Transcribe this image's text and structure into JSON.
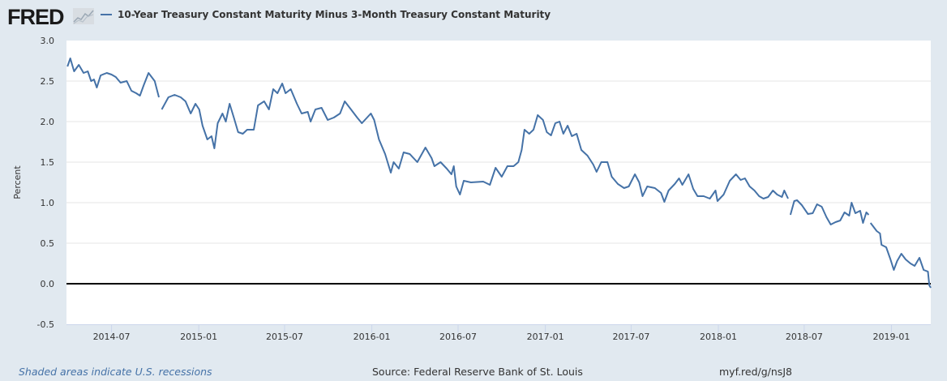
{
  "header": {
    "logo": "FRED",
    "legend_label": "10-Year Treasury Constant Maturity Minus 3-Month Treasury Constant Maturity"
  },
  "footer": {
    "recessions_note": "Shaded areas indicate U.S. recessions",
    "source": "Source: Federal Reserve Bank of St. Louis",
    "short_url": "myf.red/g/nsJ8"
  },
  "chart_data": {
    "type": "line",
    "title": "",
    "xlabel": "",
    "ylabel": "Percent",
    "xlim": [
      "2014-03-28",
      "2019-03-25"
    ],
    "ylim": [
      -0.5,
      3.0
    ],
    "yticks": [
      "-0.5",
      "0.0",
      "0.5",
      "1.0",
      "1.5",
      "2.0",
      "2.5",
      "3.0"
    ],
    "xticks": [
      "2014-07",
      "2015-01",
      "2015-07",
      "2016-01",
      "2016-07",
      "2017-01",
      "2017-07",
      "2018-01",
      "2018-07",
      "2019-01"
    ],
    "grid": true,
    "reference_line": 0,
    "legend_position": "top-left",
    "colors": {
      "series": "#4572a7",
      "zero_line": "#000000",
      "grid": "#e6e6e6",
      "background": "#e1e9f0"
    },
    "series": [
      {
        "name": "10-Year Treasury Constant Maturity Minus 3-Month Treasury Constant Maturity",
        "points": [
          [
            "2014-03-30",
            2.68
          ],
          [
            "2014-04-05",
            2.78
          ],
          [
            "2014-04-13",
            2.62
          ],
          [
            "2014-04-23",
            2.7
          ],
          [
            "2014-05-03",
            2.6
          ],
          [
            "2014-05-12",
            2.62
          ],
          [
            "2014-05-19",
            2.5
          ],
          [
            "2014-05-25",
            2.52
          ],
          [
            "2014-05-31",
            2.42
          ],
          [
            "2014-06-08",
            2.57
          ],
          [
            "2014-06-21",
            2.6
          ],
          [
            "2014-07-01",
            2.58
          ],
          [
            "2014-07-10",
            2.55
          ],
          [
            "2014-07-20",
            2.48
          ],
          [
            "2014-08-02",
            2.5
          ],
          [
            "2014-08-12",
            2.38
          ],
          [
            "2014-08-22",
            2.35
          ],
          [
            "2014-08-30",
            2.32
          ],
          [
            "2014-09-07",
            2.45
          ],
          [
            "2014-09-17",
            2.6
          ],
          [
            "2014-09-30",
            2.5
          ],
          [
            "2014-10-09",
            2.3
          ],
          [
            "2014-10-12",
            null
          ],
          [
            "2014-10-15",
            2.15
          ],
          [
            "2014-10-29",
            2.3
          ],
          [
            "2014-11-11",
            2.33
          ],
          [
            "2014-11-24",
            2.3
          ],
          [
            "2014-12-04",
            2.25
          ],
          [
            "2014-12-15",
            2.1
          ],
          [
            "2014-12-25",
            2.22
          ],
          [
            "2015-01-02",
            2.15
          ],
          [
            "2015-01-09",
            1.95
          ],
          [
            "2015-01-19",
            1.78
          ],
          [
            "2015-01-28",
            1.82
          ],
          [
            "2015-02-03",
            1.67
          ],
          [
            "2015-02-10",
            1.98
          ],
          [
            "2015-02-20",
            2.1
          ],
          [
            "2015-02-27",
            2.0
          ],
          [
            "2015-03-07",
            2.22
          ],
          [
            "2015-03-16",
            2.05
          ],
          [
            "2015-03-25",
            1.87
          ],
          [
            "2015-04-04",
            1.85
          ],
          [
            "2015-04-13",
            1.9
          ],
          [
            "2015-04-27",
            1.9
          ],
          [
            "2015-05-06",
            2.2
          ],
          [
            "2015-05-19",
            2.25
          ],
          [
            "2015-05-29",
            2.15
          ],
          [
            "2015-06-07",
            2.4
          ],
          [
            "2015-06-16",
            2.35
          ],
          [
            "2015-06-26",
            2.47
          ],
          [
            "2015-07-03",
            2.35
          ],
          [
            "2015-07-14",
            2.4
          ],
          [
            "2015-07-27",
            2.22
          ],
          [
            "2015-08-06",
            2.1
          ],
          [
            "2015-08-19",
            2.12
          ],
          [
            "2015-08-25",
            2.0
          ],
          [
            "2015-09-04",
            2.15
          ],
          [
            "2015-09-17",
            2.17
          ],
          [
            "2015-09-30",
            2.02
          ],
          [
            "2015-10-13",
            2.05
          ],
          [
            "2015-10-26",
            2.1
          ],
          [
            "2015-11-05",
            2.25
          ],
          [
            "2015-11-18",
            2.15
          ],
          [
            "2015-12-01",
            2.05
          ],
          [
            "2015-12-11",
            1.98
          ],
          [
            "2015-12-30",
            2.1
          ],
          [
            "2016-01-06",
            2.02
          ],
          [
            "2016-01-16",
            1.78
          ],
          [
            "2016-01-29",
            1.6
          ],
          [
            "2016-02-10",
            1.37
          ],
          [
            "2016-02-16",
            1.5
          ],
          [
            "2016-02-27",
            1.42
          ],
          [
            "2016-03-08",
            1.62
          ],
          [
            "2016-03-21",
            1.6
          ],
          [
            "2016-04-06",
            1.5
          ],
          [
            "2016-04-23",
            1.68
          ],
          [
            "2016-05-06",
            1.55
          ],
          [
            "2016-05-12",
            1.45
          ],
          [
            "2016-05-25",
            1.5
          ],
          [
            "2016-06-07",
            1.42
          ],
          [
            "2016-06-17",
            1.35
          ],
          [
            "2016-06-22",
            1.45
          ],
          [
            "2016-06-27",
            1.2
          ],
          [
            "2016-07-05",
            1.1
          ],
          [
            "2016-07-13",
            1.27
          ],
          [
            "2016-07-28",
            1.25
          ],
          [
            "2016-08-23",
            1.26
          ],
          [
            "2016-09-06",
            1.22
          ],
          [
            "2016-09-18",
            1.43
          ],
          [
            "2016-10-01",
            1.32
          ],
          [
            "2016-10-13",
            1.45
          ],
          [
            "2016-10-26",
            1.45
          ],
          [
            "2016-11-05",
            1.5
          ],
          [
            "2016-11-12",
            1.65
          ],
          [
            "2016-11-18",
            1.9
          ],
          [
            "2016-11-28",
            1.85
          ],
          [
            "2016-12-07",
            1.9
          ],
          [
            "2016-12-16",
            2.08
          ],
          [
            "2016-12-27",
            2.02
          ],
          [
            "2017-01-04",
            1.87
          ],
          [
            "2017-01-13",
            1.83
          ],
          [
            "2017-01-22",
            1.98
          ],
          [
            "2017-01-31",
            2.0
          ],
          [
            "2017-02-08",
            1.85
          ],
          [
            "2017-02-17",
            1.95
          ],
          [
            "2017-02-26",
            1.82
          ],
          [
            "2017-03-08",
            1.85
          ],
          [
            "2017-03-18",
            1.65
          ],
          [
            "2017-03-31",
            1.58
          ],
          [
            "2017-04-12",
            1.47
          ],
          [
            "2017-04-19",
            1.38
          ],
          [
            "2017-04-29",
            1.5
          ],
          [
            "2017-05-12",
            1.5
          ],
          [
            "2017-05-21",
            1.32
          ],
          [
            "2017-06-03",
            1.23
          ],
          [
            "2017-06-16",
            1.18
          ],
          [
            "2017-06-26",
            1.2
          ],
          [
            "2017-07-09",
            1.35
          ],
          [
            "2017-07-18",
            1.25
          ],
          [
            "2017-07-25",
            1.08
          ],
          [
            "2017-08-04",
            1.2
          ],
          [
            "2017-08-20",
            1.18
          ],
          [
            "2017-09-02",
            1.12
          ],
          [
            "2017-09-09",
            1.01
          ],
          [
            "2017-09-18",
            1.15
          ],
          [
            "2017-10-01",
            1.23
          ],
          [
            "2017-10-10",
            1.3
          ],
          [
            "2017-10-17",
            1.22
          ],
          [
            "2017-10-30",
            1.35
          ],
          [
            "2017-11-09",
            1.17
          ],
          [
            "2017-11-18",
            1.08
          ],
          [
            "2017-12-01",
            1.08
          ],
          [
            "2017-12-14",
            1.05
          ],
          [
            "2017-12-26",
            1.15
          ],
          [
            "2017-12-30",
            1.02
          ],
          [
            "2018-01-12",
            1.1
          ],
          [
            "2018-01-25",
            1.27
          ],
          [
            "2018-02-07",
            1.35
          ],
          [
            "2018-02-17",
            1.28
          ],
          [
            "2018-02-26",
            1.3
          ],
          [
            "2018-03-08",
            1.2
          ],
          [
            "2018-03-18",
            1.15
          ],
          [
            "2018-03-28",
            1.08
          ],
          [
            "2018-04-06",
            1.05
          ],
          [
            "2018-04-16",
            1.07
          ],
          [
            "2018-04-26",
            1.15
          ],
          [
            "2018-05-05",
            1.1
          ],
          [
            "2018-05-15",
            1.07
          ],
          [
            "2018-05-20",
            1.15
          ],
          [
            "2018-05-28",
            1.05
          ],
          [
            "2018-05-31",
            null
          ],
          [
            "2018-06-02",
            0.85
          ],
          [
            "2018-06-10",
            1.02
          ],
          [
            "2018-06-16",
            1.03
          ],
          [
            "2018-06-26",
            0.97
          ],
          [
            "2018-07-09",
            0.86
          ],
          [
            "2018-07-19",
            0.87
          ],
          [
            "2018-07-28",
            0.98
          ],
          [
            "2018-08-07",
            0.95
          ],
          [
            "2018-08-17",
            0.82
          ],
          [
            "2018-08-26",
            0.73
          ],
          [
            "2018-09-05",
            0.76
          ],
          [
            "2018-09-15",
            0.78
          ],
          [
            "2018-09-24",
            0.88
          ],
          [
            "2018-10-04",
            0.84
          ],
          [
            "2018-10-09",
            1.0
          ],
          [
            "2018-10-17",
            0.87
          ],
          [
            "2018-10-27",
            0.9
          ],
          [
            "2018-11-02",
            0.75
          ],
          [
            "2018-11-09",
            0.88
          ],
          [
            "2018-11-14",
            0.85
          ],
          [
            "2018-11-16",
            null
          ],
          [
            "2018-11-18",
            0.75
          ],
          [
            "2018-12-01",
            0.65
          ],
          [
            "2018-12-08",
            0.62
          ],
          [
            "2018-12-11",
            0.48
          ],
          [
            "2018-12-21",
            0.45
          ],
          [
            "2018-12-30",
            0.3
          ],
          [
            "2019-01-06",
            0.17
          ],
          [
            "2019-01-13",
            0.28
          ],
          [
            "2019-01-22",
            0.37
          ],
          [
            "2019-01-31",
            0.3
          ],
          [
            "2019-02-10",
            0.25
          ],
          [
            "2019-02-19",
            0.22
          ],
          [
            "2019-03-01",
            0.32
          ],
          [
            "2019-03-10",
            0.17
          ],
          [
            "2019-03-19",
            0.15
          ],
          [
            "2019-03-22",
            -0.02
          ],
          [
            "2019-03-25",
            -0.05
          ]
        ]
      }
    ]
  }
}
